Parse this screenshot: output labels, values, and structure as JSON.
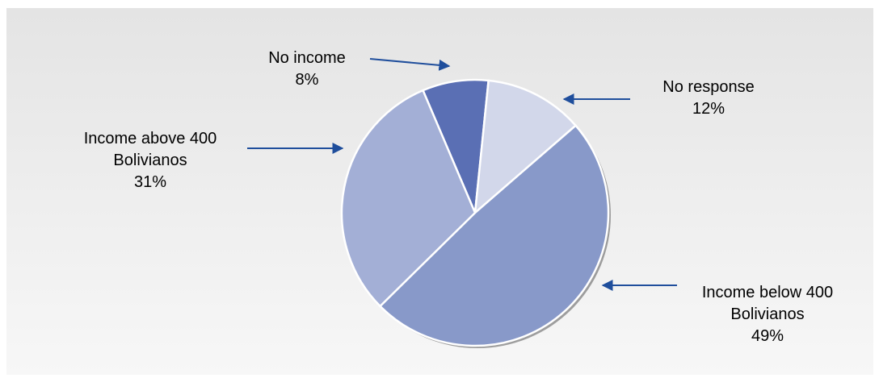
{
  "chart_data": {
    "type": "pie",
    "title": "",
    "slices": [
      {
        "label_lines": [
          "No income"
        ],
        "pct_label": "8%",
        "value": 8,
        "color": "#5a6fb4"
      },
      {
        "label_lines": [
          "No response"
        ],
        "pct_label": "12%",
        "value": 12,
        "color": "#d2d7ea"
      },
      {
        "label_lines": [
          "Income below 400",
          "Bolivianos"
        ],
        "pct_label": "49%",
        "value": 49,
        "color": "#8899c9"
      },
      {
        "label_lines": [
          "Income above 400",
          "Bolivianos"
        ],
        "pct_label": "31%",
        "value": 31,
        "color": "#a3afd6"
      }
    ],
    "legend": "callout labels with arrows",
    "colors": {
      "arrow": "#1f4e9c",
      "edge": "#ffffff"
    }
  }
}
